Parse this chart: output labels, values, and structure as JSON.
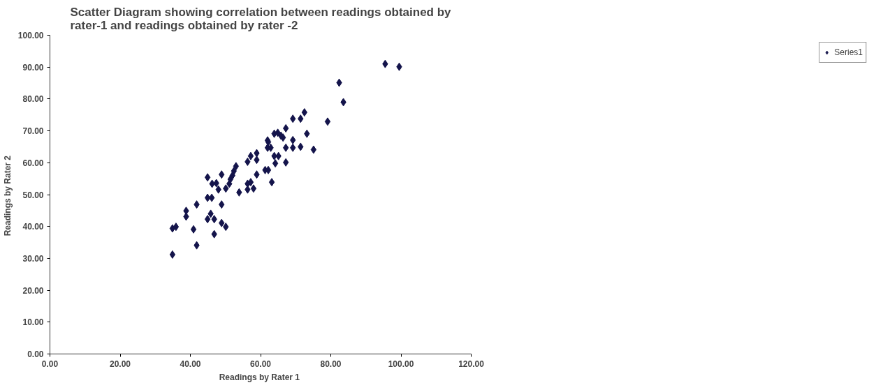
{
  "chart_data": {
    "type": "scatter",
    "title": "Scatter Diagram showing correlation between readings obtained by\nrater-1 and readings obtained by rater -2",
    "xlabel": "Readings  by Rater 1",
    "ylabel": "Readings  by Rater 2",
    "xlim": [
      0,
      120
    ],
    "ylim": [
      0,
      100
    ],
    "xticks": [
      {
        "value": 0,
        "label": "0.00"
      },
      {
        "value": 20,
        "label": "20.00"
      },
      {
        "value": 40,
        "label": "40.00"
      },
      {
        "value": 60,
        "label": "60.00"
      },
      {
        "value": 80,
        "label": "80.00"
      },
      {
        "value": 100,
        "label": "100.00"
      },
      {
        "value": 120,
        "label": "120.00"
      }
    ],
    "yticks": [
      {
        "value": 0,
        "label": "0.00"
      },
      {
        "value": 10,
        "label": "10.00"
      },
      {
        "value": 20,
        "label": "20.00"
      },
      {
        "value": 30,
        "label": "30.00"
      },
      {
        "value": 40,
        "label": "40.00"
      },
      {
        "value": 50,
        "label": "50.00"
      },
      {
        "value": 60,
        "label": "60.00"
      },
      {
        "value": 70,
        "label": "70.00"
      },
      {
        "value": 80,
        "label": "80.00"
      },
      {
        "value": 90,
        "label": "90.00"
      },
      {
        "value": 100,
        "label": "100.00"
      }
    ],
    "grid": false,
    "legend": "right",
    "marker": "diamond",
    "series": [
      {
        "name": "Series1",
        "color": "#14144b",
        "x": [
          34.9,
          34.9,
          35.9,
          38.8,
          38.8,
          40.9,
          41.8,
          41.8,
          44.9,
          45.8,
          46.8,
          46.8,
          44.9,
          46.1,
          44.9,
          46.2,
          47.4,
          48.0,
          48.9,
          48.9,
          48.9,
          50.1,
          50.1,
          51.1,
          52.0,
          53.0,
          51.4,
          52.4,
          53.9,
          56.3,
          57.2,
          58.0,
          56.3,
          56.3,
          57.2,
          58.9,
          58.9,
          58.9,
          61.3,
          62.2,
          62.0,
          62.0,
          63.2,
          62.2,
          62.9,
          63.9,
          64.9,
          65.8,
          66.4,
          63.9,
          64.2,
          65.1,
          67.2,
          69.2,
          69.2,
          67.2,
          67.2,
          69.2,
          71.4,
          72.5,
          71.4,
          73.2,
          75.1,
          79.1,
          83.6,
          82.4,
          95.5,
          99.5
        ],
        "values": [
          31.2,
          39.4,
          39.9,
          44.9,
          43.1,
          39.1,
          34.1,
          46.9,
          42.3,
          44.0,
          42.3,
          37.6,
          49.0,
          49.0,
          55.4,
          53.4,
          53.6,
          51.6,
          56.3,
          46.9,
          41.1,
          39.9,
          51.9,
          53.4,
          56.0,
          58.9,
          54.8,
          57.4,
          50.7,
          53.4,
          53.9,
          51.9,
          51.6,
          60.3,
          62.1,
          63.0,
          60.9,
          56.3,
          57.7,
          57.7,
          67.0,
          64.7,
          53.9,
          66.5,
          64.7,
          69.1,
          69.4,
          68.5,
          67.9,
          62.1,
          59.8,
          62.1,
          64.7,
          64.7,
          67.1,
          70.8,
          60.1,
          73.8,
          73.8,
          75.8,
          65.0,
          69.1,
          64.1,
          72.9,
          79.0,
          85.1,
          91.0,
          90.1
        ]
      }
    ]
  }
}
